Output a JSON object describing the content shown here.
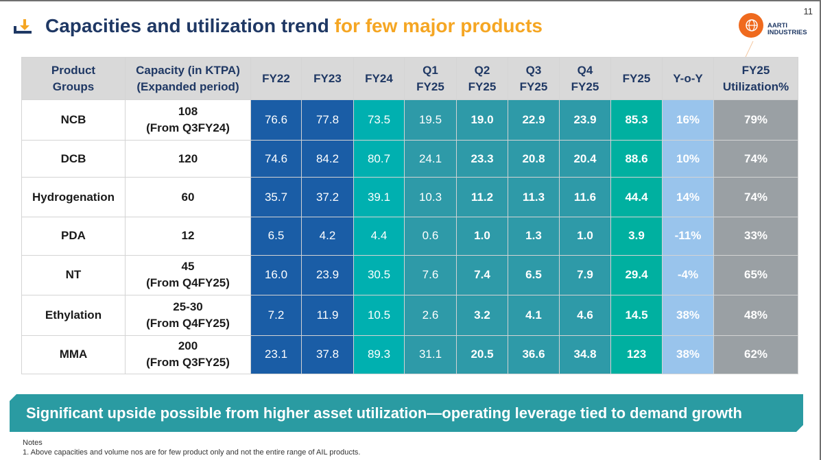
{
  "page_number": "11",
  "title": {
    "main": "Capacities and utilization trend",
    "accent": "for few major products"
  },
  "logo": {
    "line1": "AARTI",
    "line2": "INDUSTRIES"
  },
  "table": {
    "headers": [
      "Product\nGroups",
      "Capacity (in KTPA)\n(Expanded period)",
      "FY22",
      "FY23",
      "FY24",
      "Q1\nFY25",
      "Q2\nFY25",
      "Q3\nFY25",
      "Q4\nFY25",
      "FY25",
      "Y-o-Y",
      "FY25\nUtilization%"
    ],
    "rows": [
      {
        "group": "NCB",
        "capacity": "108\n(From Q3FY24)",
        "fy22": "76.6",
        "fy23": "77.8",
        "fy24": "73.5",
        "q1": "19.5",
        "q2": "19.0",
        "q3": "22.9",
        "q4": "23.9",
        "fy25": "85.3",
        "yoy": "16%",
        "util": "79%"
      },
      {
        "group": "DCB",
        "capacity": "120",
        "fy22": "74.6",
        "fy23": "84.2",
        "fy24": "80.7",
        "q1": "24.1",
        "q2": "23.3",
        "q3": "20.8",
        "q4": "20.4",
        "fy25": "88.6",
        "yoy": "10%",
        "util": "74%"
      },
      {
        "group": "Hydrogenation",
        "capacity": "60",
        "fy22": "35.7",
        "fy23": "37.2",
        "fy24": "39.1",
        "q1": "10.3",
        "q2": "11.2",
        "q3": "11.3",
        "q4": "11.6",
        "fy25": "44.4",
        "yoy": "14%",
        "util": "74%"
      },
      {
        "group": "PDA",
        "capacity": "12",
        "fy22": "6.5",
        "fy23": "4.2",
        "fy24": "4.4",
        "q1": "0.6",
        "q2": "1.0",
        "q3": "1.3",
        "q4": "1.0",
        "fy25": "3.9",
        "yoy": "-11%",
        "util": "33%"
      },
      {
        "group": "NT",
        "capacity": "45\n(From Q4FY25)",
        "fy22": "16.0",
        "fy23": "23.9",
        "fy24": "30.5",
        "q1": "7.6",
        "q2": "7.4",
        "q3": "6.5",
        "q4": "7.9",
        "fy25": "29.4",
        "yoy": "-4%",
        "util": "65%"
      },
      {
        "group": "Ethylation",
        "capacity": "25-30\n(From Q4FY25)",
        "fy22": "7.2",
        "fy23": "11.9",
        "fy24": "10.5",
        "q1": "2.6",
        "q2": "3.2",
        "q3": "4.1",
        "q4": "4.6",
        "fy25": "14.5",
        "yoy": "38%",
        "util": "48%"
      },
      {
        "group": "MMA",
        "capacity": "200\n(From Q3FY25)",
        "fy22": "23.1",
        "fy23": "37.8",
        "fy24": "89.3",
        "q1": "31.1",
        "q2": "20.5",
        "q3": "36.6",
        "q4": "34.8",
        "fy25": "123",
        "yoy": "38%",
        "util": "62%"
      }
    ]
  },
  "banner": "Significant upside possible from higher asset utilization—operating leverage tied to demand growth",
  "notes": {
    "heading": "Notes",
    "items": [
      "1.  Above capacities and volume nos are for few product only and not the entire range of AIL products."
    ]
  },
  "colors": {
    "title": "#1f3864",
    "accent": "#f5a623",
    "fy22_23": "#1a5da6",
    "fy24": "#00b0b0",
    "quarters": "#2e9aa8",
    "fy25": "#00b0a0",
    "yoy": "#99c4ec",
    "util": "#9aa0a4",
    "banner": "#2a9ba2"
  },
  "icons": {
    "title_icon": "download-arrow-icon",
    "logo_icon": "globe-icon"
  }
}
